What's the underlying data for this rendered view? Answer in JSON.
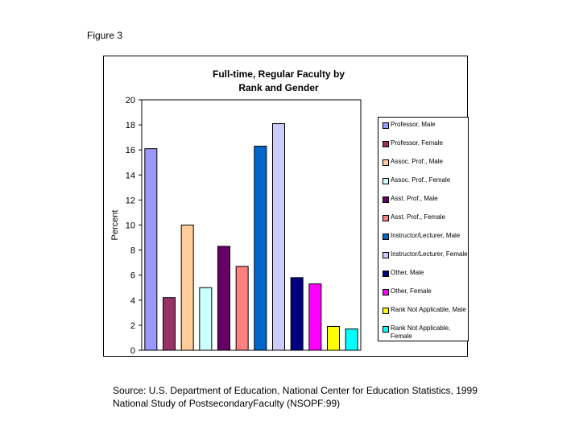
{
  "figure_label": "Figure 3",
  "source_lines": [
    "Source: U.S. Department of Education, National Center for Education Statistics, 1999",
    "National Study of PostsecondaryFaculty (NSOPF:99)"
  ],
  "chart_data": {
    "type": "bar",
    "title_lines": [
      "Full-time, Regular Faculty by",
      "Rank and Gender"
    ],
    "ylabel": "Percent",
    "xlabel": "",
    "ylim": [
      0,
      20
    ],
    "yticks": [
      0,
      2,
      4,
      6,
      8,
      10,
      12,
      14,
      16,
      18,
      20
    ],
    "legend_position": "right",
    "grid": false,
    "series": [
      {
        "name": "Professor, Male",
        "value": 16.1,
        "color": "#9999ff"
      },
      {
        "name": "Professor, Female",
        "value": 4.2,
        "color": "#993366"
      },
      {
        "name": "Assoc. Prof., Male",
        "value": 10.0,
        "color": "#ffcc99"
      },
      {
        "name": "Assoc. Prof., Female",
        "value": 5.0,
        "color": "#ccffff"
      },
      {
        "name": "Asst. Prof., Male",
        "value": 8.3,
        "color": "#660066"
      },
      {
        "name": "Asst. Prof., Female",
        "value": 6.7,
        "color": "#ff8080"
      },
      {
        "name": "Instructor/Lecturer, Male",
        "value": 16.3,
        "color": "#0066cc"
      },
      {
        "name": "Instructor/Lecturer, Female",
        "value": 18.1,
        "color": "#ccccff"
      },
      {
        "name": "Other, Male",
        "value": 5.8,
        "color": "#000080"
      },
      {
        "name": "Other, Female",
        "value": 5.3,
        "color": "#ff00ff"
      },
      {
        "name": "Rank Not Applicable, Male",
        "value": 1.9,
        "color": "#ffff00"
      },
      {
        "name": "Rank Not Applicable, Female",
        "value": 1.7,
        "color": "#00ffff"
      }
    ]
  }
}
